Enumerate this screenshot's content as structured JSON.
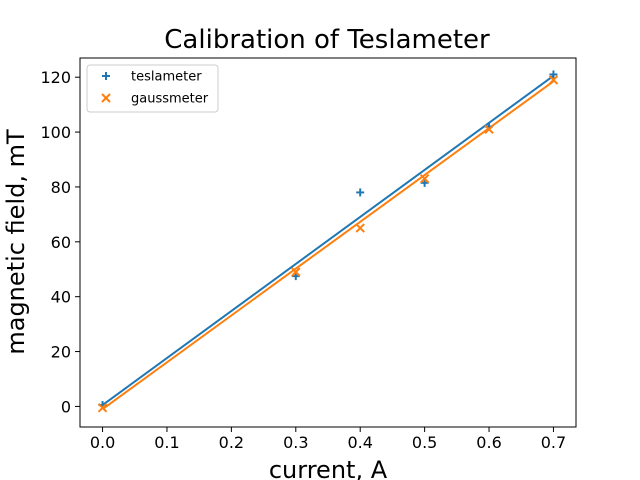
{
  "chart_data": {
    "type": "scatter",
    "title": "Calibration of Teslameter",
    "xlabel": "current, A",
    "ylabel": "magnetic field, mT",
    "xlim": [
      -0.035,
      0.735
    ],
    "ylim": [
      -7.5,
      127
    ],
    "xticks": [
      0.0,
      0.1,
      0.2,
      0.3,
      0.4,
      0.5,
      0.6,
      0.7
    ],
    "xtick_labels": [
      "0.0",
      "0.1",
      "0.2",
      "0.3",
      "0.4",
      "0.5",
      "0.6",
      "0.7"
    ],
    "yticks": [
      0,
      20,
      40,
      60,
      80,
      100,
      120
    ],
    "ytick_labels": [
      "0",
      "20",
      "40",
      "60",
      "80",
      "100",
      "120"
    ],
    "grid": false,
    "legend_position": "top-left",
    "series": [
      {
        "name": "teslameter",
        "marker": "plus",
        "color": "#1f77b4",
        "x": [
          0.0,
          0.3,
          0.4,
          0.5,
          0.6,
          0.7
        ],
        "y": [
          0.5,
          47.5,
          78.0,
          81.5,
          102.0,
          121.0
        ],
        "fit": {
          "x": [
            0.0,
            0.7
          ],
          "y": [
            0.5,
            120.5
          ]
        }
      },
      {
        "name": "gaussmeter",
        "marker": "x",
        "color": "#ff7f0e",
        "x": [
          0.0,
          0.3,
          0.4,
          0.5,
          0.6,
          0.7
        ],
        "y": [
          -0.5,
          49.0,
          65.0,
          83.0,
          101.0,
          119.0
        ],
        "fit": {
          "x": [
            0.0,
            0.7
          ],
          "y": [
            -1.0,
            118.5
          ]
        }
      }
    ]
  }
}
